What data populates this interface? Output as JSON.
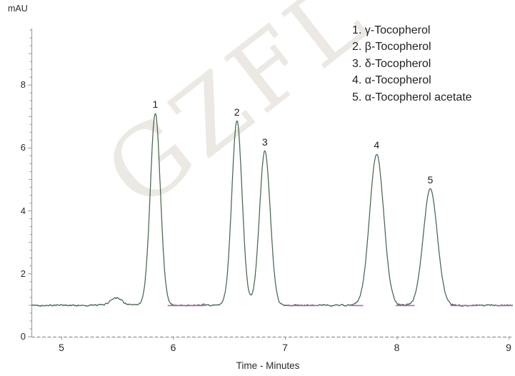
{
  "watermark": {
    "text": "GZFL"
  },
  "colors": {
    "background": "#ffffff",
    "trace": "#47684f",
    "overlay_trace": "#b864ba",
    "axis": "#a0a0a0",
    "tick": "#9a9a9a",
    "text": "#2a2a2a",
    "watermark": "#ece8e3"
  },
  "legend": {
    "items": [
      {
        "text": "1. γ-Tocopherol"
      },
      {
        "text": "2. β-Tocopherol"
      },
      {
        "text": "3. δ-Tocopherol"
      },
      {
        "text": "4. α-Tocopherol"
      },
      {
        "text": "5. α-Tocopherol acetate"
      }
    ]
  },
  "chart_data": {
    "type": "line",
    "title": "",
    "xlabel": "Time - Minutes",
    "ylabel": "mAU",
    "xlim": [
      4.73,
      9.04
    ],
    "ylim": [
      0,
      9.8
    ],
    "x_ticks": [
      5,
      6,
      7,
      8,
      9
    ],
    "y_ticks": [
      0,
      2,
      4,
      6,
      8
    ],
    "y_minor_step": 0.25,
    "grid": false,
    "legend_position": "top-right",
    "baseline_mau": 1.0,
    "noise_mau": 0.03,
    "peaks": [
      {
        "label": "1",
        "compound": "γ-Tocopherol",
        "time_min": 5.84,
        "apex_mau": 7.1,
        "sigma_min": 0.045
      },
      {
        "label": "2",
        "compound": "β-Tocopherol",
        "time_min": 6.57,
        "apex_mau": 6.85,
        "sigma_min": 0.046
      },
      {
        "label": "3",
        "compound": "δ-Tocopherol",
        "time_min": 6.82,
        "apex_mau": 5.9,
        "sigma_min": 0.048
      },
      {
        "label": "4",
        "compound": "α-Tocopherol",
        "time_min": 7.82,
        "apex_mau": 5.8,
        "sigma_min": 0.063
      },
      {
        "label": "5",
        "compound": "α-Tocopherol acetate",
        "time_min": 8.3,
        "apex_mau": 4.7,
        "sigma_min": 0.063
      }
    ],
    "minor_features": [
      {
        "time_min": 5.49,
        "apex_mau": 1.25,
        "sigma_min": 0.05,
        "note": "small baseline disturbance"
      }
    ],
    "overlay_trace_segments_min": [
      [
        5.95,
        6.1
      ],
      [
        6.12,
        6.28
      ],
      [
        7.03,
        7.29
      ],
      [
        7.59,
        7.7
      ],
      [
        7.99,
        8.16
      ],
      [
        8.48,
        8.72
      ],
      [
        8.89,
        9.01
      ]
    ]
  }
}
